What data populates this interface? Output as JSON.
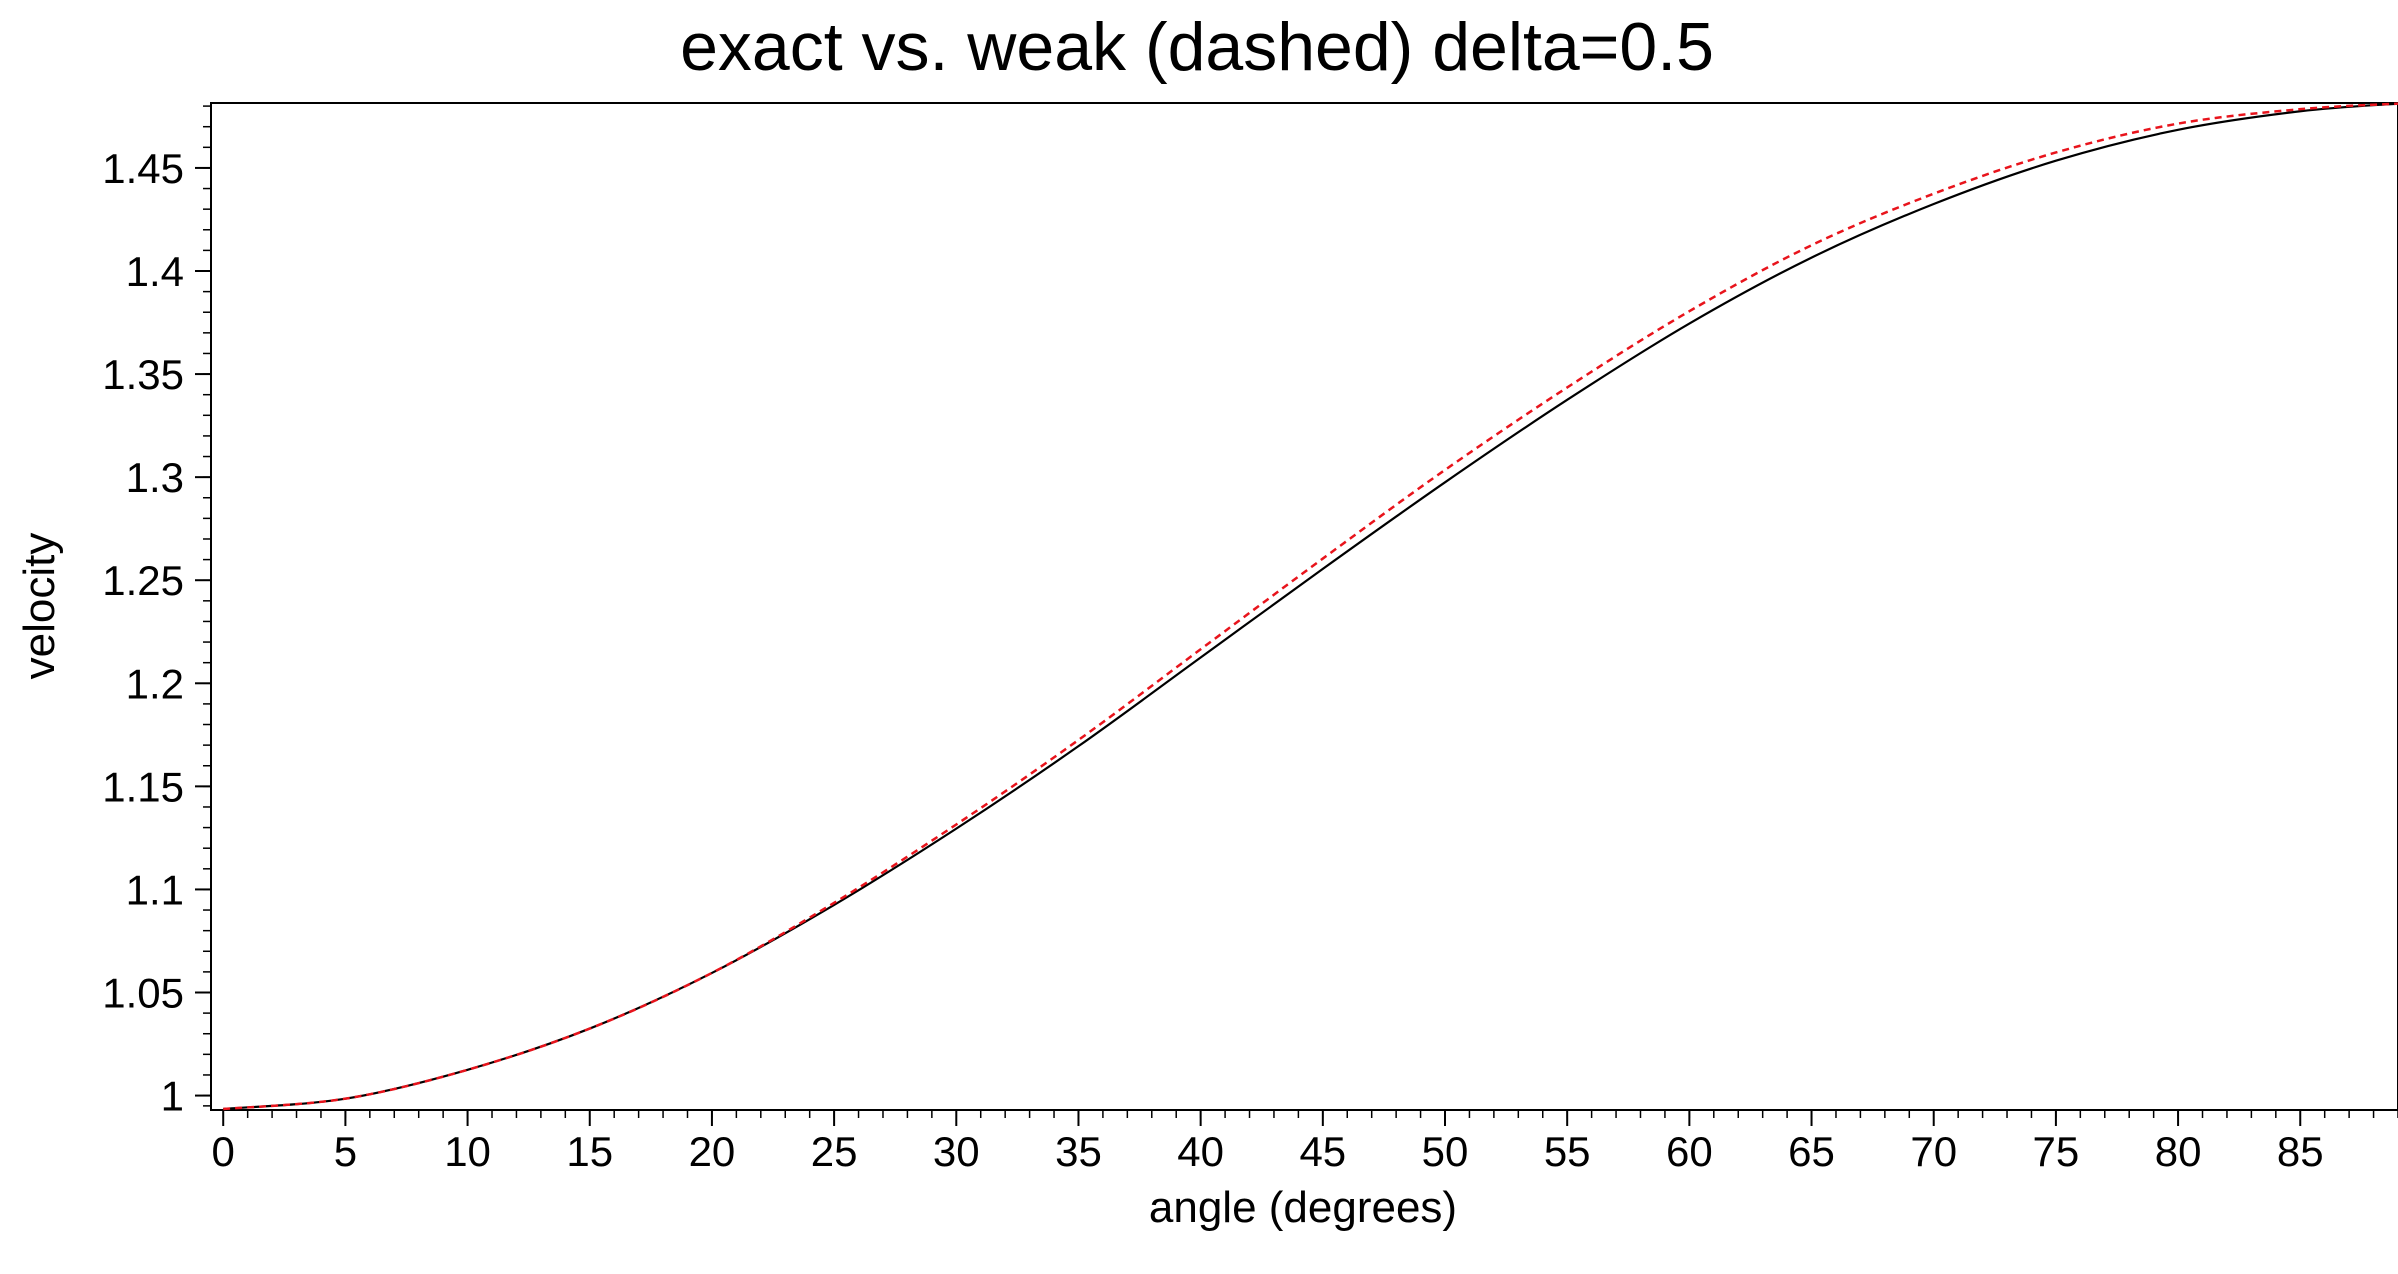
{
  "chart_data": {
    "type": "line",
    "title": "exact vs. weak (dashed) delta=0.5",
    "xlabel": "angle (degrees)",
    "ylabel": "velocity",
    "xlim": [
      -0.5,
      89
    ],
    "ylim": [
      0.993,
      1.4815
    ],
    "x_ticks": [
      0,
      5,
      10,
      15,
      20,
      25,
      30,
      35,
      40,
      45,
      50,
      55,
      60,
      65,
      70,
      75,
      80,
      85
    ],
    "x_tick_labels": [
      "0",
      "5",
      "10",
      "15",
      "20",
      "25",
      "30",
      "35",
      "40",
      "45",
      "50",
      "55",
      "60",
      "65",
      "70",
      "75",
      "80",
      "85"
    ],
    "y_ticks": [
      1,
      1.05,
      1.1,
      1.15,
      1.2,
      1.25,
      1.3,
      1.35,
      1.4,
      1.45
    ],
    "y_tick_labels": [
      "1",
      "1.05",
      "1.1",
      "1.15",
      "1.2",
      "1.25",
      "1.3",
      "1.35",
      "1.4",
      "1.45"
    ],
    "grid": false,
    "series": [
      {
        "style": "solid",
        "color": "#000000",
        "x": [
          0,
          5,
          10,
          15,
          20,
          25,
          30,
          35,
          40,
          45,
          50,
          55,
          60,
          65,
          70,
          75,
          80,
          85,
          89
        ],
        "y": [
          0.9935,
          0.9985,
          1.0125,
          1.0325,
          1.0595,
          1.0925,
          1.1295,
          1.1695,
          1.2125,
          1.2555,
          1.2975,
          1.3375,
          1.3745,
          1.4065,
          1.4325,
          1.4535,
          1.4685,
          1.4775,
          1.4812
        ]
      },
      {
        "style": "dashed",
        "color": "#e8141c",
        "x": [
          0,
          5,
          10,
          15,
          20,
          25,
          30,
          35,
          40,
          45,
          50,
          55,
          60,
          65,
          70,
          75,
          80,
          85,
          89
        ],
        "y": [
          0.9935,
          0.9985,
          1.0125,
          1.0325,
          1.0595,
          1.0935,
          1.1315,
          1.1725,
          1.2165,
          1.2605,
          1.3035,
          1.3435,
          1.3805,
          1.4125,
          1.4375,
          1.4575,
          1.4715,
          1.4785,
          1.4812
        ]
      }
    ]
  }
}
